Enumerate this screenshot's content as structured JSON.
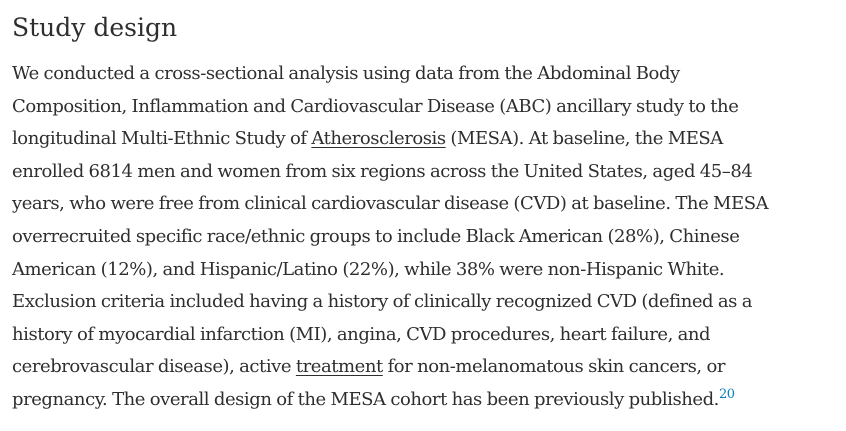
{
  "section": {
    "title": "Study design",
    "lines": [
      "We conducted a cross-sectional analysis using data from the Abdominal Body",
      "Composition, Inflammation and Cardiovascular Disease (ABC) ancillary study to the",
      "longitudinal Multi-Ethnic Study of ",
      "Atherosclerosis",
      " (MESA). At baseline, the MESA",
      "enrolled 6814 men and women from six regions across the United States, aged 45–84",
      "years, who were free from clinical cardiovascular disease (CVD) at baseline. The MESA",
      "overrecruited specific race/ethnic groups to include Black American (28%), Chinese",
      "American (12%), and Hispanic/Latino (22%), while 38% were non-Hispanic White.",
      "Exclusion criteria included having a history of clinically recognized CVD (defined as a",
      "history of myocardial infarction (MI), angina, CVD procedures, heart failure, and",
      "cerebrovascular disease), active ",
      "treatment",
      " for non-melanomatous skin cancers, or",
      "pregnancy. The overall design of the MESA cohort has been previously published.",
      "20"
    ]
  },
  "colors": {
    "text": "#2e2e2e",
    "reference_link": "#0c7dbb"
  }
}
